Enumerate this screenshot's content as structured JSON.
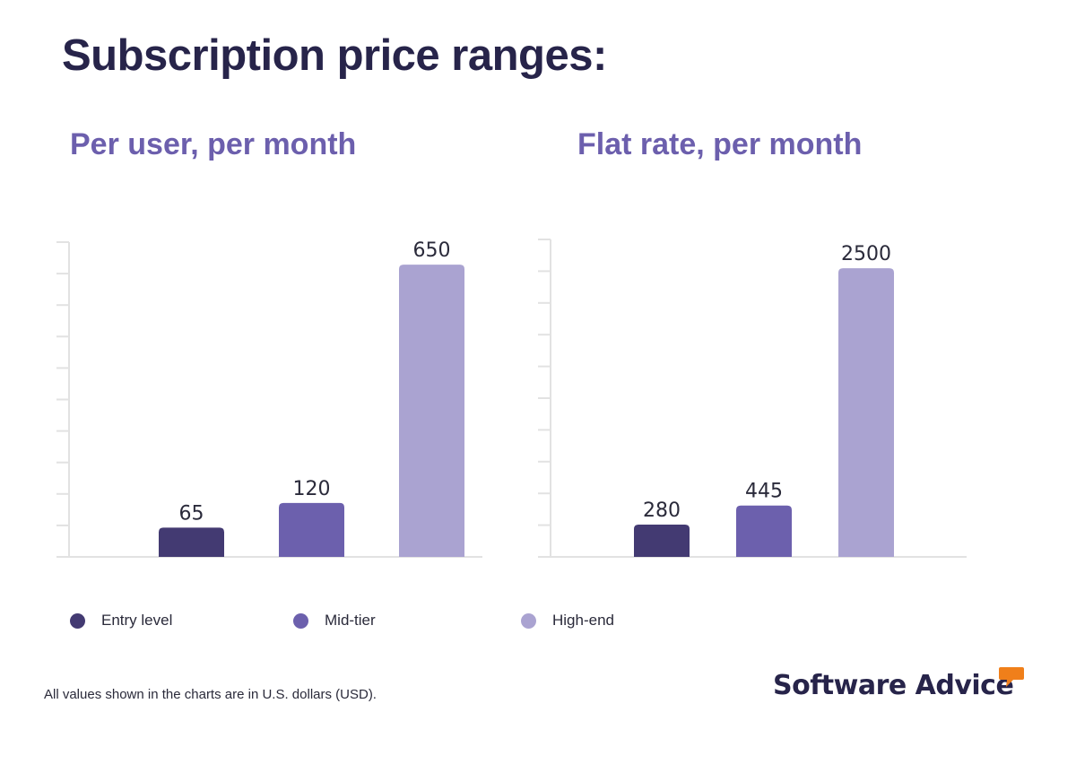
{
  "title": "Subscription price ranges:",
  "colors": {
    "entry": "#433a72",
    "mid": "#6c60ad",
    "high": "#aaa3d1",
    "title": "#27244a",
    "subtitle": "#6c5fad",
    "axis": "#e2e2e2",
    "logo_accent": "#f07f1a"
  },
  "chart_data": [
    {
      "type": "bar",
      "title": "Per user, per month",
      "categories": [
        "Entry level",
        "Mid-tier",
        "High-end"
      ],
      "values": [
        65,
        120,
        650
      ],
      "ylim": [
        0,
        700
      ],
      "grid": false,
      "xlabel": "",
      "ylabel": ""
    },
    {
      "type": "bar",
      "title": "Flat rate, per month",
      "categories": [
        "Entry level",
        "Mid-tier",
        "High-end"
      ],
      "values": [
        280,
        445,
        2500
      ],
      "ylim": [
        0,
        2750
      ],
      "grid": false,
      "xlabel": "",
      "ylabel": ""
    }
  ],
  "legend": [
    {
      "label": "Entry level",
      "color": "#433a72"
    },
    {
      "label": "Mid-tier",
      "color": "#6c60ad"
    },
    {
      "label": "High-end",
      "color": "#aaa3d1"
    }
  ],
  "footnote": "All values shown in the charts are in U.S. dollars (USD).",
  "logo": {
    "text": "Software Advice",
    "icon": "speech-bubble-icon"
  }
}
